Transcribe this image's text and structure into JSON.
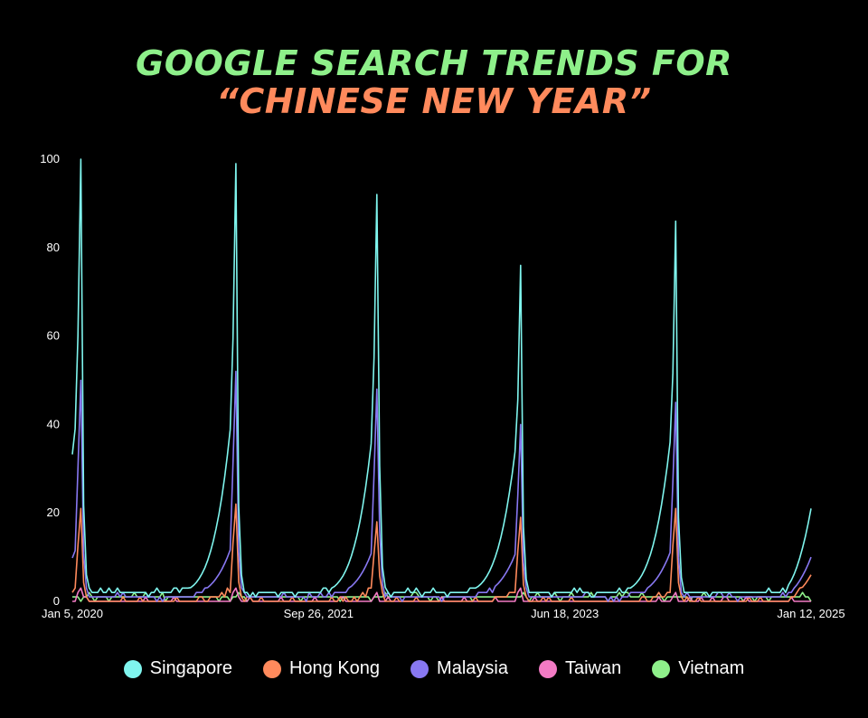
{
  "title_line1": "GOOGLE SEARCH TRENDS FOR",
  "title_line2": "“CHINESE NEW YEAR”",
  "chart_data": {
    "type": "line",
    "title": "GOOGLE SEARCH TRENDS FOR “CHINESE NEW YEAR”",
    "xlabel": "",
    "ylabel": "",
    "ylim": [
      0,
      100
    ],
    "yticks": [
      0,
      20,
      40,
      60,
      80,
      100
    ],
    "x_range": [
      "2020-01-05",
      "2025-01-12"
    ],
    "x_tick_labels": [
      "Jan 5, 2020",
      "Sep 26, 2021",
      "Jun 18, 2023",
      "Jan 12, 2025"
    ],
    "legend_position": "bottom",
    "grid": false,
    "peaks": [
      {
        "date": "2020-01-26",
        "Singapore": 100,
        "Hong Kong": 21,
        "Malaysia": 50,
        "Taiwan": 3,
        "Vietnam": 1
      },
      {
        "date": "2021-02-14",
        "Singapore": 99,
        "Hong Kong": 22,
        "Malaysia": 52,
        "Taiwan": 3,
        "Vietnam": 1
      },
      {
        "date": "2022-02-01",
        "Singapore": 92,
        "Hong Kong": 18,
        "Malaysia": 48,
        "Taiwan": 2,
        "Vietnam": 1
      },
      {
        "date": "2023-01-22",
        "Singapore": 76,
        "Hong Kong": 19,
        "Malaysia": 40,
        "Taiwan": 3,
        "Vietnam": 1
      },
      {
        "date": "2024-02-11",
        "Singapore": 86,
        "Hong Kong": 21,
        "Malaysia": 45,
        "Taiwan": 2,
        "Vietnam": 1
      }
    ],
    "final_values": {
      "date": "2025-01-12",
      "Singapore": 21,
      "Hong Kong": 6,
      "Malaysia": 10,
      "Taiwan": 0,
      "Vietnam": 1
    },
    "series": [
      {
        "name": "Singapore",
        "color": "#7ff5ee",
        "baseline": 2,
        "peak_ramp": 30
      },
      {
        "name": "Hong Kong",
        "color": "#ff8a5c",
        "baseline": 0,
        "peak_ramp": 4
      },
      {
        "name": "Malaysia",
        "color": "#8878f2",
        "baseline": 1,
        "peak_ramp": 12
      },
      {
        "name": "Taiwan",
        "color": "#f27ac4",
        "baseline": 0,
        "peak_ramp": 0
      },
      {
        "name": "Vietnam",
        "color": "#8ef08a",
        "baseline": 1,
        "peak_ramp": 0
      }
    ]
  },
  "legend": [
    {
      "label": "Singapore",
      "color": "#7ff5ee"
    },
    {
      "label": "Hong Kong",
      "color": "#ff8a5c"
    },
    {
      "label": "Malaysia",
      "color": "#8878f2"
    },
    {
      "label": "Taiwan",
      "color": "#f27ac4"
    },
    {
      "label": "Vietnam",
      "color": "#8ef08a"
    }
  ]
}
